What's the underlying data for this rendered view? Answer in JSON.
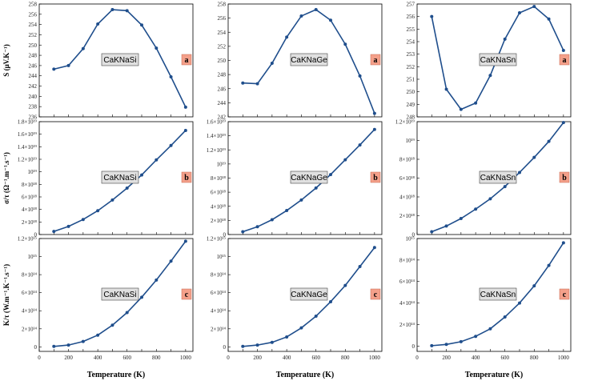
{
  "figure": {
    "x_label": "Temperature (K)",
    "row_labels": [
      "S (μV.K⁻¹)",
      "σ/τ (Ω⁻¹.m⁻¹.s⁻¹)",
      "K/τ (W.m⁻¹.K⁻¹.s⁻¹)"
    ],
    "line_color": "#1f4e8c",
    "badge_color": "#f4a08a"
  },
  "chart_data": [
    {
      "type": "line",
      "row": 0,
      "col": 0,
      "compound": "CaKNaSi",
      "badge": "a",
      "x": [
        100,
        200,
        300,
        400,
        500,
        600,
        700,
        800,
        900,
        1000
      ],
      "y": [
        245.3,
        246.0,
        249.3,
        254.1,
        256.9,
        256.7,
        253.9,
        249.4,
        243.8,
        237.9
      ],
      "ylim": [
        236,
        258
      ],
      "yticks": [
        "236",
        "238",
        "240",
        "242",
        "244",
        "246",
        "248",
        "250",
        "252",
        "254",
        "256",
        "258"
      ],
      "ytick_vals": [
        236,
        238,
        240,
        242,
        244,
        246,
        248,
        250,
        252,
        254,
        256,
        258
      ]
    },
    {
      "type": "line",
      "row": 0,
      "col": 1,
      "compound": "CaKNaGe",
      "badge": "a",
      "x": [
        100,
        200,
        300,
        400,
        500,
        600,
        700,
        800,
        900,
        1000
      ],
      "y": [
        246.8,
        246.7,
        249.6,
        253.3,
        256.3,
        257.2,
        255.7,
        252.3,
        247.8,
        242.5
      ],
      "ylim": [
        242,
        258
      ],
      "yticks": [
        "242",
        "244",
        "246",
        "248",
        "250",
        "252",
        "254",
        "256",
        "258"
      ],
      "ytick_vals": [
        242,
        244,
        246,
        248,
        250,
        252,
        254,
        256,
        258
      ]
    },
    {
      "type": "line",
      "row": 0,
      "col": 2,
      "compound": "CaKNaSn",
      "badge": "a",
      "x": [
        100,
        200,
        300,
        400,
        500,
        600,
        700,
        800,
        900,
        1000
      ],
      "y": [
        256.0,
        250.2,
        248.6,
        249.1,
        251.3,
        254.2,
        256.3,
        256.8,
        255.8,
        253.3
      ],
      "ylim": [
        248,
        257
      ],
      "yticks": [
        "248",
        "249",
        "250",
        "251",
        "252",
        "253",
        "254",
        "255",
        "256",
        "257"
      ],
      "ytick_vals": [
        248,
        249,
        250,
        251,
        252,
        253,
        254,
        255,
        256,
        257
      ]
    },
    {
      "type": "line",
      "row": 1,
      "col": 0,
      "compound": "CaKNaSi",
      "badge": "b",
      "x": [
        100,
        200,
        300,
        400,
        500,
        600,
        700,
        800,
        900,
        1000
      ],
      "y": [
        0.05,
        0.13,
        0.24,
        0.38,
        0.55,
        0.74,
        0.95,
        1.19,
        1.42,
        1.66
      ],
      "ylim": [
        0,
        1.8
      ],
      "yticks": [
        "0",
        "2×10¹⁸",
        "4×10¹⁸",
        "6×10¹⁸",
        "8×10¹⁸",
        "10¹⁹",
        "1.2×10¹⁹",
        "1.4×10¹⁹",
        "1.6×10¹⁹",
        "1.8×10¹⁹"
      ],
      "ytick_vals": [
        0,
        0.2,
        0.4,
        0.6,
        0.8,
        1.0,
        1.2,
        1.4,
        1.6,
        1.8
      ]
    },
    {
      "type": "line",
      "row": 1,
      "col": 1,
      "compound": "CaKNaGe",
      "badge": "b",
      "x": [
        100,
        200,
        300,
        400,
        500,
        600,
        700,
        800,
        900,
        1000
      ],
      "y": [
        0.04,
        0.11,
        0.21,
        0.34,
        0.49,
        0.66,
        0.85,
        1.06,
        1.27,
        1.49
      ],
      "ylim": [
        0,
        1.6
      ],
      "yticks": [
        "0",
        "2×10¹⁸",
        "4×10¹⁸",
        "6×10¹⁸",
        "8×10¹⁸",
        "10¹⁹",
        "1.2×10¹⁹",
        "1.4×10¹⁹",
        "1.6×10¹⁹"
      ],
      "ytick_vals": [
        0,
        0.2,
        0.4,
        0.6,
        0.8,
        1.0,
        1.2,
        1.4,
        1.6
      ]
    },
    {
      "type": "line",
      "row": 1,
      "col": 2,
      "compound": "CaKNaSn",
      "badge": "b",
      "x": [
        100,
        200,
        300,
        400,
        500,
        600,
        700,
        800,
        900,
        1000
      ],
      "y": [
        0.03,
        0.09,
        0.17,
        0.27,
        0.38,
        0.51,
        0.66,
        0.82,
        0.99,
        1.19
      ],
      "ylim": [
        0,
        1.2
      ],
      "yticks": [
        "0",
        "2×10¹⁸",
        "4×10¹⁸",
        "6×10¹⁸",
        "8×10¹⁸",
        "10¹⁹",
        "1.2×10¹⁹"
      ],
      "ytick_vals": [
        0,
        0.2,
        0.4,
        0.6,
        0.8,
        1.0,
        1.2
      ]
    },
    {
      "type": "line",
      "row": 2,
      "col": 0,
      "compound": "CaKNaSi",
      "badge": "c",
      "x": [
        100,
        200,
        300,
        400,
        500,
        600,
        700,
        800,
        900,
        1000
      ],
      "y": [
        0.005,
        0.02,
        0.06,
        0.13,
        0.24,
        0.38,
        0.55,
        0.74,
        0.95,
        1.17
      ],
      "ylim": [
        -0.05,
        1.2
      ],
      "yticks": [
        "0",
        "2×10¹⁴",
        "4×10¹⁴",
        "6×10¹⁴",
        "8×10¹⁴",
        "10¹⁵",
        "1.2×10¹⁵"
      ],
      "ytick_vals": [
        0,
        0.2,
        0.4,
        0.6,
        0.8,
        1.0,
        1.2
      ]
    },
    {
      "type": "line",
      "row": 2,
      "col": 1,
      "compound": "CaKNaGe",
      "badge": "c",
      "x": [
        100,
        200,
        300,
        400,
        500,
        600,
        700,
        800,
        900,
        1000
      ],
      "y": [
        0.005,
        0.02,
        0.05,
        0.11,
        0.21,
        0.34,
        0.5,
        0.68,
        0.89,
        1.1
      ],
      "ylim": [
        -0.05,
        1.2
      ],
      "yticks": [
        "0",
        "2×10¹⁴",
        "4×10¹⁴",
        "6×10¹⁴",
        "8×10¹⁴",
        "10¹⁵",
        "1.2×10¹⁵"
      ],
      "ytick_vals": [
        0,
        0.2,
        0.4,
        0.6,
        0.8,
        1.0,
        1.2
      ]
    },
    {
      "type": "line",
      "row": 2,
      "col": 2,
      "compound": "CaKNaSn",
      "badge": "c",
      "x": [
        100,
        200,
        300,
        400,
        500,
        600,
        700,
        800,
        900,
        1000
      ],
      "y": [
        0.003,
        0.015,
        0.04,
        0.09,
        0.16,
        0.27,
        0.4,
        0.56,
        0.75,
        0.96
      ],
      "ylim": [
        -0.05,
        1.0
      ],
      "yticks": [
        "0",
        "2×10¹⁴",
        "4×10¹⁴",
        "6×10¹⁴",
        "8×10¹⁴",
        "10¹⁵"
      ],
      "ytick_vals": [
        0,
        0.2,
        0.4,
        0.6,
        0.8,
        1.0
      ]
    }
  ],
  "xaxis": {
    "ticks": [
      0,
      100,
      200,
      300,
      400,
      500,
      600,
      700,
      800,
      900,
      1000
    ],
    "tick_labels": [
      "0",
      "100",
      "200",
      "300",
      "400",
      "500",
      "600",
      "700",
      "800",
      "900",
      "1000"
    ],
    "xlim": [
      0,
      1050
    ]
  }
}
